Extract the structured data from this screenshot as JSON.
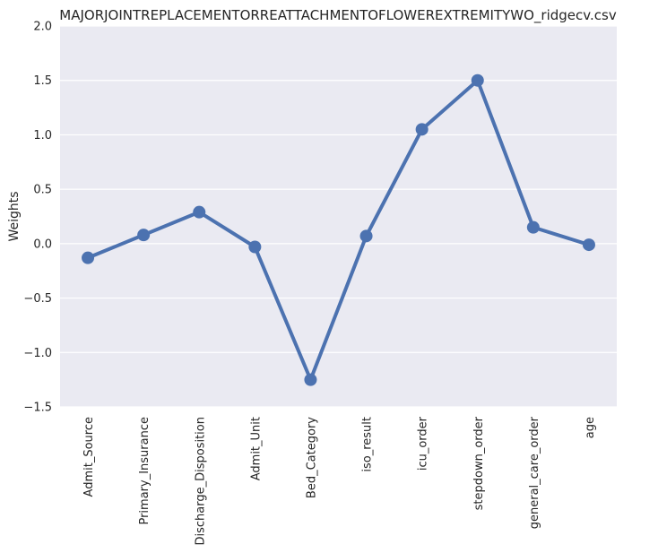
{
  "chart_data": {
    "type": "line",
    "title": "MAJORJOINTREPLACEMENTORREATTACHMENTOFLOWEREXTREMITYWO_ridgecv.csv",
    "xlabel": "",
    "ylabel": "Weights",
    "ylim": [
      -1.5,
      2.0
    ],
    "yticks": [
      2.0,
      1.5,
      1.0,
      0.5,
      0.0,
      -0.5,
      -1.0,
      -1.5
    ],
    "ytick_labels": [
      "2.0",
      "1.5",
      "1.0",
      "0.5",
      "0.0",
      "−0.5",
      "−1.0",
      "−1.5"
    ],
    "grid": true,
    "legend": "none",
    "categories": [
      "Admit_Source",
      "Primary_Insurance",
      "Discharge_Disposition",
      "Admit_Unit",
      "Bed_Category",
      "iso_result",
      "icu_order",
      "stepdown_order",
      "general_care_order",
      "age"
    ],
    "series": [
      {
        "values": [
          -0.13,
          0.08,
          0.29,
          -0.03,
          -1.25,
          0.07,
          1.05,
          1.5,
          0.15,
          -0.01
        ],
        "color": "#4c72b0"
      }
    ],
    "colors": {
      "background": "#eaeaf2",
      "grid": "#ffffff",
      "line": "#4c72b0"
    }
  }
}
